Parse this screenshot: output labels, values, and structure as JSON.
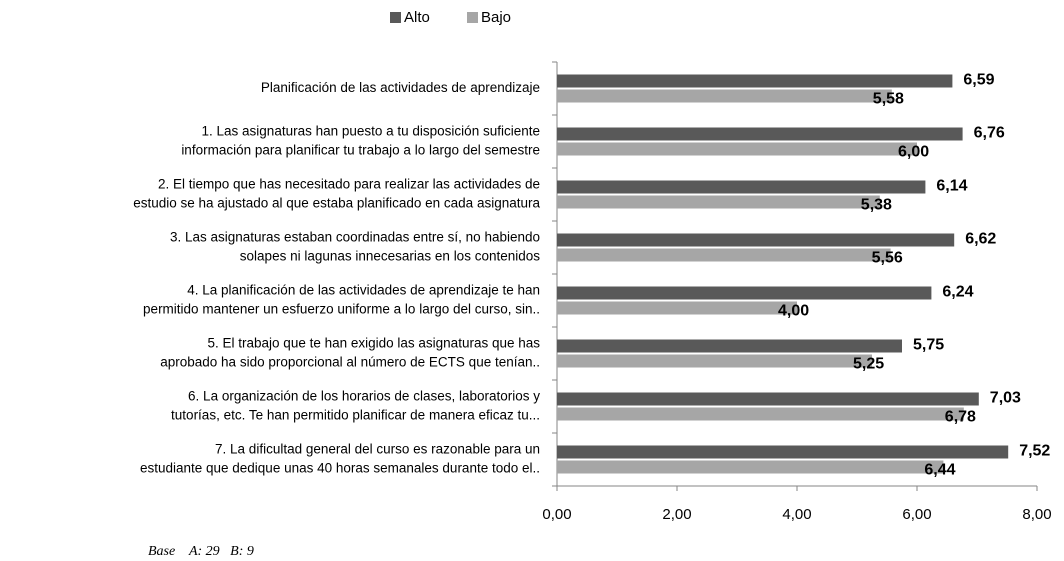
{
  "chart_data": {
    "type": "hbar",
    "categories": [
      [
        "Planificación de las actividades de aprendizaje"
      ],
      [
        "1.      Las asignaturas han puesto a tu disposición suficiente",
        "información para planificar tu trabajo a lo largo del semestre"
      ],
      [
        "2.      El tiempo que has necesitado para realizar las actividades de",
        "estudio se ha ajustado al que estaba planificado en cada asignatura"
      ],
      [
        "3.      Las asignaturas estaban coordinadas entre sí, no habiendo",
        "solapes ni lagunas innecesarias en los contenidos"
      ],
      [
        "4.      La planificación de las actividades de aprendizaje te han",
        "permitido mantener un esfuerzo uniforme a lo largo del curso, sin.."
      ],
      [
        "5.      El trabajo que te han exigido las asignaturas que has",
        "aprobado  ha sido proporcional al número de ECTS que tenían.."
      ],
      [
        "6.      La organización de los horarios de clases, laboratorios y",
        "tutorías, etc. Te han permitido planificar de manera eficaz tu..."
      ],
      [
        "7.      La dificultad general del curso es razonable para un",
        "estudiante que dedique unas 40 horas semanales durante todo el.."
      ]
    ],
    "series": [
      {
        "name": "Alto",
        "color": "#595959",
        "values": [
          6.59,
          6.76,
          6.14,
          6.62,
          6.24,
          5.75,
          7.03,
          7.52
        ],
        "value_labels": [
          "6,59",
          "6,76",
          "6,14",
          "6,62",
          "6,24",
          "5,75",
          "7,03",
          "7,52"
        ]
      },
      {
        "name": "Bajo",
        "color": "#a6a6a6",
        "values": [
          5.58,
          6.0,
          5.38,
          5.56,
          4.0,
          5.25,
          6.78,
          6.44
        ],
        "value_labels": [
          "5,58",
          "6,00",
          "5,38",
          "5,56",
          "4,00",
          "5,25",
          "6,78",
          "6,44"
        ]
      }
    ],
    "xlim": [
      0,
      8
    ],
    "xticks": [
      {
        "value": 0,
        "label": "0,00"
      },
      {
        "value": 2,
        "label": "2,00"
      },
      {
        "value": 4,
        "label": "4,00"
      },
      {
        "value": 6,
        "label": "6,00"
      },
      {
        "value": 8,
        "label": "8,00"
      }
    ],
    "legend": "top",
    "annotation": "Base    A: 29   B: 9"
  }
}
